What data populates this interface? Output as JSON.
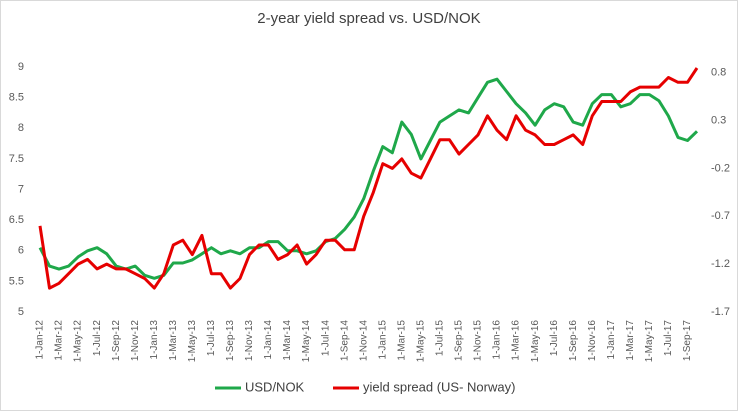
{
  "chart_data": {
    "type": "line",
    "title": "2-year yield spread vs. USD/NOK",
    "categories": [
      "1-Jan-12",
      null,
      "1-Mar-12",
      null,
      "1-May-12",
      null,
      "1-Jul-12",
      null,
      "1-Sep-12",
      null,
      "1-Nov-12",
      null,
      "1-Jan-13",
      null,
      "1-Mar-13",
      null,
      "1-May-13",
      null,
      "1-Jul-13",
      null,
      "1-Sep-13",
      null,
      "1-Nov-13",
      null,
      "1-Jan-14",
      null,
      "1-Mar-14",
      null,
      "1-May-14",
      null,
      "1-Jul-14",
      null,
      "1-Sep-14",
      null,
      "1-Nov-14",
      null,
      "1-Jan-15",
      null,
      "1-Mar-15",
      null,
      "1-May-15",
      null,
      "1-Jul-15",
      null,
      "1-Sep-15",
      null,
      "1-Nov-15",
      null,
      "1-Jan-16",
      null,
      "1-Mar-16",
      null,
      "1-May-16",
      null,
      "1-Jul-16",
      null,
      "1-Sep-16",
      null,
      "1-Nov-16",
      null,
      "1-Jan-17",
      null,
      "1-Mar-17",
      null,
      "1-May-17",
      null,
      "1-Jul-17",
      null,
      "1-Sep-17",
      null
    ],
    "series": [
      {
        "name": "USD/NOK",
        "color": "#1fa84a",
        "values": [
          6.05,
          5.75,
          5.7,
          5.75,
          5.9,
          6.0,
          6.05,
          5.95,
          5.75,
          5.7,
          5.75,
          5.6,
          5.55,
          5.6,
          5.8,
          5.8,
          5.85,
          5.95,
          6.05,
          5.95,
          6.0,
          5.95,
          6.05,
          6.05,
          6.15,
          6.15,
          6.0,
          6.0,
          5.95,
          6.0,
          6.15,
          6.2,
          6.35,
          6.55,
          6.85,
          7.3,
          7.7,
          7.6,
          8.1,
          7.9,
          7.5,
          7.8,
          8.1,
          8.2,
          8.3,
          8.25,
          8.5,
          8.75,
          8.8,
          8.6,
          8.4,
          8.25,
          8.05,
          8.3,
          8.4,
          8.35,
          8.1,
          8.05,
          8.4,
          8.55,
          8.55,
          8.35,
          8.4,
          8.55,
          8.55,
          8.45,
          8.2,
          7.85,
          7.8,
          7.95
        ]
      },
      {
        "name": "yield spread (US- Norway)",
        "color": "#e60000",
        "axis": "y2",
        "values": [
          -0.8,
          -1.45,
          -1.4,
          -1.3,
          -1.2,
          -1.15,
          -1.25,
          -1.2,
          -1.25,
          -1.25,
          -1.3,
          -1.35,
          -1.45,
          -1.3,
          -1.0,
          -0.95,
          -1.1,
          -0.9,
          -1.3,
          -1.3,
          -1.45,
          -1.35,
          -1.1,
          -1.0,
          -1.0,
          -1.15,
          -1.1,
          -1.0,
          -1.2,
          -1.1,
          -0.95,
          -0.95,
          -1.05,
          -1.05,
          -0.7,
          -0.45,
          -0.15,
          -0.2,
          -0.1,
          -0.25,
          -0.3,
          -0.1,
          0.1,
          0.1,
          -0.05,
          0.05,
          0.15,
          0.35,
          0.2,
          0.1,
          0.35,
          0.2,
          0.15,
          0.05,
          0.05,
          0.1,
          0.15,
          0.05,
          0.35,
          0.5,
          0.5,
          0.5,
          0.6,
          0.65,
          0.65,
          0.65,
          0.75,
          0.7,
          0.7,
          0.85
        ]
      }
    ],
    "ylim": [
      5,
      9
    ],
    "yticks": [
      5,
      5.5,
      6,
      6.5,
      7,
      7.5,
      8,
      8.5,
      9
    ],
    "y2lim": [
      -1.7,
      0.86
    ],
    "y2ticks": [
      -1.7,
      -1.2,
      -0.7,
      -0.2,
      0.3,
      0.8
    ],
    "grid": false,
    "legend": "bottom"
  }
}
